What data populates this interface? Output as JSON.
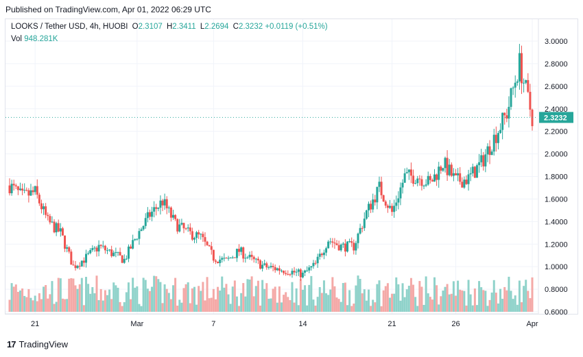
{
  "published": "Published on TradingView.com, Apr 01, 2022 06:29 UTC",
  "legend": {
    "symbol": "LOOKS / Tether USD, 4h, HUOBI",
    "o_label": "O",
    "o_value": "2.3107",
    "h_label": "H",
    "h_value": "2.3411",
    "l_label": "L",
    "l_value": "2.2694",
    "c_label": "C",
    "c_value": "2.3232",
    "change": "+0.0119 (+0.51%)",
    "vol_label": "Vol",
    "vol_value": "948.281K"
  },
  "footer": {
    "brand": "TradingView"
  },
  "colors": {
    "up": "#26a69a",
    "down": "#ef5350",
    "up_vol": "#8fd2ca",
    "down_vol": "#f4a9a7",
    "grid": "#f0f3fa",
    "axis_text": "#131722"
  },
  "chart_data": {
    "type": "candlestick",
    "ylim": [
      0.6,
      3.1
    ],
    "y_ticks": [
      "3.0000",
      "2.8000",
      "2.6000",
      "2.4000",
      "2.2000",
      "2.0000",
      "1.8000",
      "1.6000",
      "1.4000",
      "1.2000",
      "1.0000",
      "0.8000",
      "0.6000"
    ],
    "x_ticks": [
      "21",
      "Mar",
      "7",
      "14",
      "21",
      "26",
      "Apr"
    ],
    "last_price": "2.3232",
    "series": [
      {
        "date": "Feb 19",
        "close": 1.72
      },
      {
        "date": "Feb 20",
        "close": 1.62
      },
      {
        "date": "Feb 21",
        "close": 1.66
      },
      {
        "date": "Feb 22",
        "close": 1.4
      },
      {
        "date": "Feb 23",
        "close": 1.3
      },
      {
        "date": "Feb 24",
        "close": 1.0
      },
      {
        "date": "Feb 25",
        "close": 1.08
      },
      {
        "date": "Feb 26",
        "close": 1.18
      },
      {
        "date": "Feb 27",
        "close": 1.12
      },
      {
        "date": "Feb 28",
        "close": 1.06
      },
      {
        "date": "Mar 1",
        "close": 1.28
      },
      {
        "date": "Mar 2",
        "close": 1.46
      },
      {
        "date": "Mar 3",
        "close": 1.58
      },
      {
        "date": "Mar 4",
        "close": 1.38
      },
      {
        "date": "Mar 5",
        "close": 1.3
      },
      {
        "date": "Mar 6",
        "close": 1.26
      },
      {
        "date": "Mar 7",
        "close": 1.08
      },
      {
        "date": "Mar 8",
        "close": 1.05
      },
      {
        "date": "Mar 9",
        "close": 1.14
      },
      {
        "date": "Mar 10",
        "close": 1.06
      },
      {
        "date": "Mar 11",
        "close": 1.0
      },
      {
        "date": "Mar 12",
        "close": 0.98
      },
      {
        "date": "Mar 13",
        "close": 0.96
      },
      {
        "date": "Mar 14",
        "close": 0.93
      },
      {
        "date": "Mar 15",
        "close": 1.02
      },
      {
        "date": "Mar 16",
        "close": 1.24
      },
      {
        "date": "Mar 17",
        "close": 1.18
      },
      {
        "date": "Mar 18",
        "close": 1.18
      },
      {
        "date": "Mar 19",
        "close": 1.48
      },
      {
        "date": "Mar 20",
        "close": 1.7
      },
      {
        "date": "Mar 21",
        "close": 1.48
      },
      {
        "date": "Mar 22",
        "close": 1.8
      },
      {
        "date": "Mar 23",
        "close": 1.8
      },
      {
        "date": "Mar 24",
        "close": 1.74
      },
      {
        "date": "Mar 25",
        "close": 1.92
      },
      {
        "date": "Mar 26",
        "close": 1.76
      },
      {
        "date": "Mar 27",
        "close": 1.78
      },
      {
        "date": "Mar 28",
        "close": 1.92
      },
      {
        "date": "Mar 29",
        "close": 2.14
      },
      {
        "date": "Mar 30",
        "close": 2.36
      },
      {
        "date": "Mar 31",
        "close": 2.8
      },
      {
        "date": "Apr 1",
        "close": 2.3232
      }
    ]
  }
}
